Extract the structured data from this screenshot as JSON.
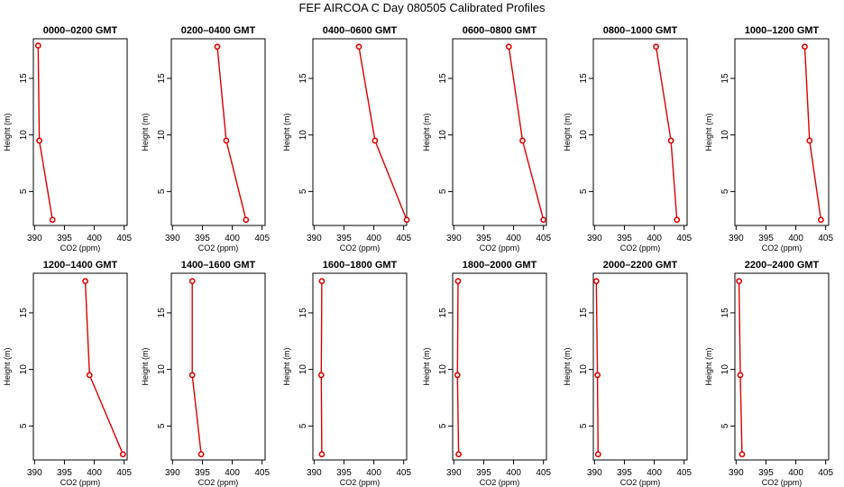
{
  "figure": {
    "title": "FEF AIRCOA C  Day 080505  Calibrated Profiles"
  },
  "colors": {
    "profile": "#dd0000",
    "frame": "#000000"
  },
  "chart_data": [
    {
      "type": "line",
      "title": "0000–0200 GMT",
      "xlabel": "CO2 (ppm)",
      "ylabel": "Height (m)",
      "xlim": [
        389.8,
        405.5
      ],
      "ylim": [
        2,
        18.5
      ],
      "xticks": [
        390,
        395,
        400,
        405
      ],
      "yticks": [
        5,
        10,
        15
      ],
      "points": [
        {
          "x": 390.6,
          "y": 17.9
        },
        {
          "x": 390.8,
          "y": 9.5
        },
        {
          "x": 393.0,
          "y": 2.5
        }
      ]
    },
    {
      "type": "line",
      "title": "0200–0400 GMT",
      "xlabel": "CO2 (ppm)",
      "ylabel": "Height (m)",
      "xlim": [
        389.8,
        405.5
      ],
      "ylim": [
        2,
        18.5
      ],
      "xticks": [
        390,
        395,
        400,
        405
      ],
      "yticks": [
        5,
        10,
        15
      ],
      "points": [
        {
          "x": 397.5,
          "y": 17.8
        },
        {
          "x": 399.0,
          "y": 9.5
        },
        {
          "x": 402.3,
          "y": 2.5
        }
      ]
    },
    {
      "type": "line",
      "title": "0400–0600 GMT",
      "xlabel": "CO2 (ppm)",
      "ylabel": "Height (m)",
      "xlim": [
        389.8,
        405.5
      ],
      "ylim": [
        2,
        18.5
      ],
      "xticks": [
        390,
        395,
        400,
        405
      ],
      "yticks": [
        5,
        10,
        15
      ],
      "points": [
        {
          "x": 397.5,
          "y": 17.8
        },
        {
          "x": 400.2,
          "y": 9.5
        },
        {
          "x": 405.5,
          "y": 2.5
        }
      ]
    },
    {
      "type": "line",
      "title": "0600–0800 GMT",
      "xlabel": "CO2 (ppm)",
      "ylabel": "Height (m)",
      "xlim": [
        389.8,
        405.5
      ],
      "ylim": [
        2,
        18.5
      ],
      "xticks": [
        390,
        395,
        400,
        405
      ],
      "yticks": [
        5,
        10,
        15
      ],
      "points": [
        {
          "x": 399.2,
          "y": 17.8
        },
        {
          "x": 401.5,
          "y": 9.5
        },
        {
          "x": 405.0,
          "y": 2.5
        }
      ]
    },
    {
      "type": "line",
      "title": "0800–1000 GMT",
      "xlabel": "CO2 (ppm)",
      "ylabel": "Height (m)",
      "xlim": [
        389.8,
        405.5
      ],
      "ylim": [
        2,
        18.5
      ],
      "xticks": [
        390,
        395,
        400,
        405
      ],
      "yticks": [
        5,
        10,
        15
      ],
      "points": [
        {
          "x": 400.3,
          "y": 17.8
        },
        {
          "x": 402.8,
          "y": 9.5
        },
        {
          "x": 403.8,
          "y": 2.5
        }
      ]
    },
    {
      "type": "line",
      "title": "1000–1200 GMT",
      "xlabel": "CO2 (ppm)",
      "ylabel": "Height (m)",
      "xlim": [
        389.8,
        405.5
      ],
      "ylim": [
        2,
        18.5
      ],
      "xticks": [
        390,
        395,
        400,
        405
      ],
      "yticks": [
        5,
        10,
        15
      ],
      "points": [
        {
          "x": 401.5,
          "y": 17.8
        },
        {
          "x": 402.3,
          "y": 9.5
        },
        {
          "x": 404.2,
          "y": 2.5
        }
      ]
    },
    {
      "type": "line",
      "title": "1200–1400 GMT",
      "xlabel": "CO2 (ppm)",
      "ylabel": "Height (m)",
      "xlim": [
        389.8,
        405.5
      ],
      "ylim": [
        2,
        18.5
      ],
      "xticks": [
        390,
        395,
        400,
        405
      ],
      "yticks": [
        5,
        10,
        15
      ],
      "points": [
        {
          "x": 398.5,
          "y": 17.8
        },
        {
          "x": 399.2,
          "y": 9.5
        },
        {
          "x": 404.8,
          "y": 2.5
        }
      ]
    },
    {
      "type": "line",
      "title": "1400–1600 GMT",
      "xlabel": "CO2 (ppm)",
      "ylabel": "Height (m)",
      "xlim": [
        389.8,
        405.5
      ],
      "ylim": [
        2,
        18.5
      ],
      "xticks": [
        390,
        395,
        400,
        405
      ],
      "yticks": [
        5,
        10,
        15
      ],
      "points": [
        {
          "x": 393.3,
          "y": 17.8
        },
        {
          "x": 393.3,
          "y": 9.5
        },
        {
          "x": 394.8,
          "y": 2.5
        }
      ]
    },
    {
      "type": "line",
      "title": "1600–1800 GMT",
      "xlabel": "CO2 (ppm)",
      "ylabel": "Height (m)",
      "xlim": [
        389.8,
        405.5
      ],
      "ylim": [
        2,
        18.5
      ],
      "xticks": [
        390,
        395,
        400,
        405
      ],
      "yticks": [
        5,
        10,
        15
      ],
      "points": [
        {
          "x": 391.3,
          "y": 17.8
        },
        {
          "x": 391.2,
          "y": 9.5
        },
        {
          "x": 391.3,
          "y": 2.5
        }
      ]
    },
    {
      "type": "line",
      "title": "1800–2000 GMT",
      "xlabel": "CO2 (ppm)",
      "ylabel": "Height (m)",
      "xlim": [
        389.8,
        405.5
      ],
      "ylim": [
        2,
        18.5
      ],
      "xticks": [
        390,
        395,
        400,
        405
      ],
      "yticks": [
        5,
        10,
        15
      ],
      "points": [
        {
          "x": 390.7,
          "y": 17.8
        },
        {
          "x": 390.6,
          "y": 9.5
        },
        {
          "x": 390.8,
          "y": 2.5
        }
      ]
    },
    {
      "type": "line",
      "title": "2000–2200 GMT",
      "xlabel": "CO2 (ppm)",
      "ylabel": "Height (m)",
      "xlim": [
        389.8,
        405.5
      ],
      "ylim": [
        2,
        18.5
      ],
      "xticks": [
        390,
        395,
        400,
        405
      ],
      "yticks": [
        5,
        10,
        15
      ],
      "points": [
        {
          "x": 390.3,
          "y": 17.8
        },
        {
          "x": 390.5,
          "y": 9.5
        },
        {
          "x": 390.6,
          "y": 2.5
        }
      ]
    },
    {
      "type": "line",
      "title": "2200–2400 GMT",
      "xlabel": "CO2 (ppm)",
      "ylabel": "Height (m)",
      "xlim": [
        389.8,
        405.5
      ],
      "ylim": [
        2,
        18.5
      ],
      "xticks": [
        390,
        395,
        400,
        405
      ],
      "yticks": [
        5,
        10,
        15
      ],
      "points": [
        {
          "x": 390.5,
          "y": 17.8
        },
        {
          "x": 390.7,
          "y": 9.5
        },
        {
          "x": 391.0,
          "y": 2.5
        }
      ]
    }
  ]
}
